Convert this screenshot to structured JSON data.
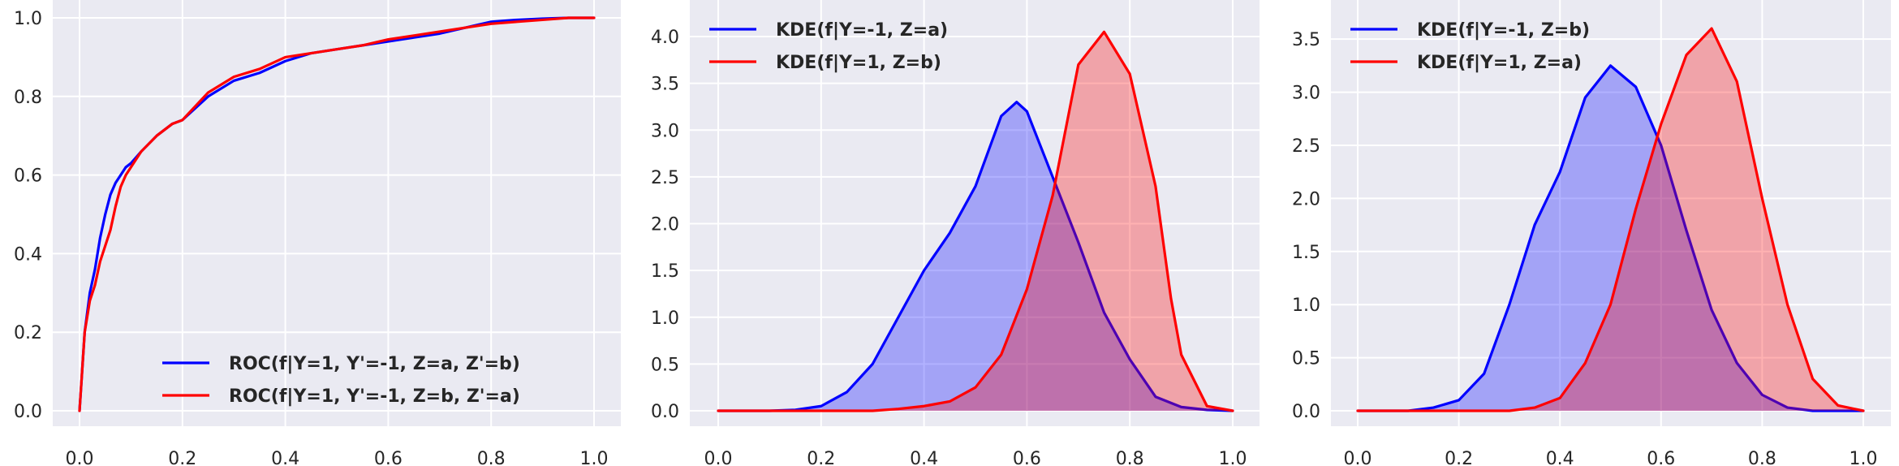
{
  "chart_data": [
    {
      "type": "line",
      "xlim": [
        0,
        1
      ],
      "ylim": [
        0,
        1
      ],
      "xticks": [
        "0.0",
        "0.2",
        "0.4",
        "0.6",
        "0.8",
        "1.0"
      ],
      "yticks": [
        "0.0",
        "0.2",
        "0.4",
        "0.6",
        "0.8",
        "1.0"
      ],
      "grid": true,
      "legend_position": "lower-right",
      "series": [
        {
          "name": "ROC(f|Y=1, Y'=-1, Z=a, Z'=b)",
          "color": "#0000ff",
          "fill": false,
          "x": [
            0,
            0.005,
            0.01,
            0.02,
            0.03,
            0.04,
            0.05,
            0.06,
            0.07,
            0.08,
            0.09,
            0.1,
            0.12,
            0.15,
            0.18,
            0.2,
            0.25,
            0.3,
            0.35,
            0.4,
            0.45,
            0.5,
            0.55,
            0.6,
            0.65,
            0.7,
            0.75,
            0.8,
            0.85,
            0.9,
            0.95,
            1.0
          ],
          "y": [
            0,
            0.1,
            0.2,
            0.3,
            0.36,
            0.44,
            0.5,
            0.55,
            0.58,
            0.6,
            0.62,
            0.63,
            0.66,
            0.7,
            0.73,
            0.74,
            0.8,
            0.84,
            0.86,
            0.89,
            0.91,
            0.92,
            0.93,
            0.94,
            0.95,
            0.96,
            0.975,
            0.99,
            0.995,
            0.998,
            1.0,
            1.0
          ]
        },
        {
          "name": "ROC(f|Y=1, Y'=-1, Z=b, Z'=a)",
          "color": "#ff0000",
          "fill": false,
          "x": [
            0,
            0.005,
            0.01,
            0.02,
            0.03,
            0.04,
            0.05,
            0.06,
            0.07,
            0.08,
            0.09,
            0.1,
            0.12,
            0.15,
            0.18,
            0.2,
            0.25,
            0.3,
            0.35,
            0.4,
            0.45,
            0.5,
            0.55,
            0.6,
            0.65,
            0.7,
            0.75,
            0.8,
            0.85,
            0.9,
            0.95,
            1.0
          ],
          "y": [
            0,
            0.1,
            0.2,
            0.28,
            0.32,
            0.38,
            0.42,
            0.46,
            0.52,
            0.57,
            0.6,
            0.62,
            0.66,
            0.7,
            0.73,
            0.74,
            0.81,
            0.85,
            0.87,
            0.9,
            0.91,
            0.92,
            0.93,
            0.945,
            0.955,
            0.965,
            0.975,
            0.985,
            0.99,
            0.995,
            1.0,
            1.0
          ]
        }
      ]
    },
    {
      "type": "area",
      "xlim": [
        0,
        1
      ],
      "ylim": [
        0,
        4.2
      ],
      "xticks": [
        "0.0",
        "0.2",
        "0.4",
        "0.6",
        "0.8",
        "1.0"
      ],
      "yticks": [
        "0.0",
        "0.5",
        "1.0",
        "1.5",
        "2.0",
        "2.5",
        "3.0",
        "3.5",
        "4.0"
      ],
      "grid": true,
      "legend_position": "top-left",
      "series": [
        {
          "name": "KDE(f|Y=-1, Z=a)",
          "color": "#0000ff",
          "fill": true,
          "x": [
            0.0,
            0.1,
            0.15,
            0.2,
            0.25,
            0.3,
            0.35,
            0.4,
            0.45,
            0.5,
            0.55,
            0.58,
            0.6,
            0.65,
            0.7,
            0.75,
            0.8,
            0.85,
            0.9,
            0.95,
            1.0
          ],
          "y": [
            0.0,
            0.0,
            0.01,
            0.05,
            0.2,
            0.5,
            1.0,
            1.5,
            1.9,
            2.4,
            3.15,
            3.3,
            3.2,
            2.5,
            1.8,
            1.05,
            0.55,
            0.15,
            0.04,
            0.01,
            0.0
          ]
        },
        {
          "name": "KDE(f|Y=1, Z=b)",
          "color": "#ff0000",
          "fill": true,
          "x": [
            0.0,
            0.3,
            0.35,
            0.4,
            0.45,
            0.5,
            0.55,
            0.6,
            0.65,
            0.7,
            0.75,
            0.8,
            0.85,
            0.88,
            0.9,
            0.95,
            1.0
          ],
          "y": [
            0.0,
            0.0,
            0.02,
            0.05,
            0.1,
            0.25,
            0.6,
            1.3,
            2.3,
            3.7,
            4.05,
            3.6,
            2.4,
            1.2,
            0.6,
            0.05,
            0.0
          ]
        }
      ]
    },
    {
      "type": "area",
      "xlim": [
        0,
        1
      ],
      "ylim": [
        0,
        3.7
      ],
      "xticks": [
        "0.0",
        "0.2",
        "0.4",
        "0.6",
        "0.8",
        "1.0"
      ],
      "yticks": [
        "0.0",
        "0.5",
        "1.0",
        "1.5",
        "2.0",
        "2.5",
        "3.0",
        "3.5"
      ],
      "grid": true,
      "legend_position": "top-left",
      "series": [
        {
          "name": "KDE(f|Y=-1, Z=b)",
          "color": "#0000ff",
          "fill": true,
          "x": [
            0.0,
            0.1,
            0.15,
            0.2,
            0.25,
            0.3,
            0.35,
            0.4,
            0.45,
            0.5,
            0.55,
            0.6,
            0.65,
            0.7,
            0.75,
            0.8,
            0.85,
            0.9,
            0.95,
            1.0
          ],
          "y": [
            0.0,
            0.0,
            0.03,
            0.1,
            0.35,
            1.0,
            1.75,
            2.25,
            2.95,
            3.25,
            3.05,
            2.5,
            1.7,
            0.95,
            0.45,
            0.15,
            0.03,
            0.0,
            0.0,
            0.0
          ]
        },
        {
          "name": "KDE(f|Y=1, Z=a)",
          "color": "#ff0000",
          "fill": true,
          "x": [
            0.0,
            0.3,
            0.35,
            0.4,
            0.45,
            0.5,
            0.55,
            0.6,
            0.65,
            0.7,
            0.75,
            0.8,
            0.85,
            0.9,
            0.95,
            1.0
          ],
          "y": [
            0.0,
            0.0,
            0.03,
            0.12,
            0.45,
            1.0,
            1.9,
            2.7,
            3.35,
            3.6,
            3.1,
            2.0,
            1.0,
            0.3,
            0.05,
            0.0
          ]
        }
      ]
    }
  ]
}
